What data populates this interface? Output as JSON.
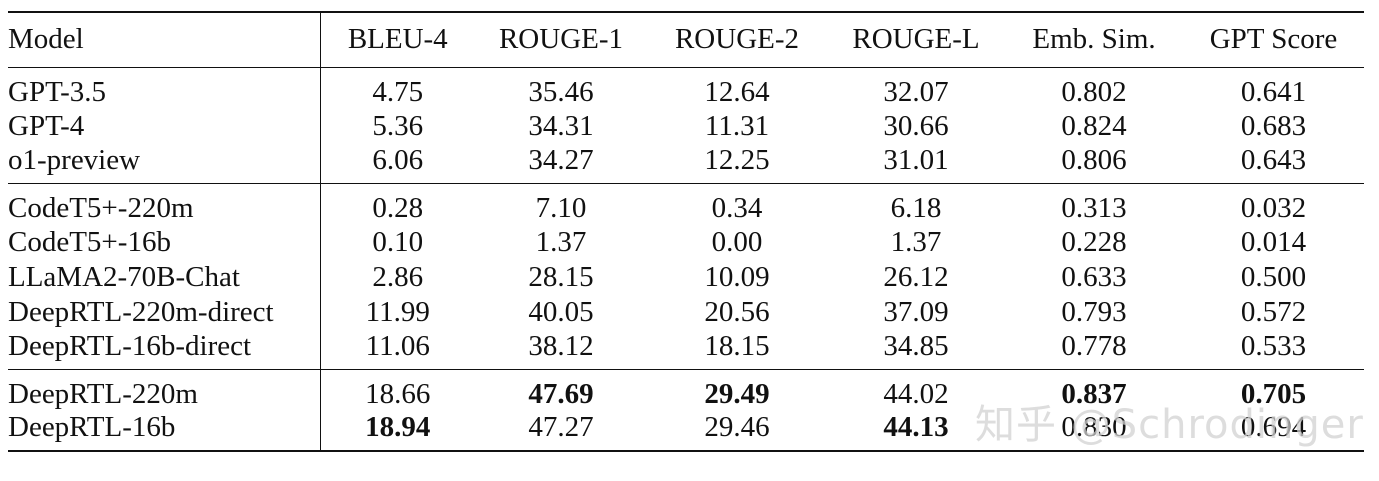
{
  "table": {
    "headers": [
      "Model",
      "BLEU-4",
      "ROUGE-1",
      "ROUGE-2",
      "ROUGE-L",
      "Emb. Sim.",
      "GPT Score"
    ],
    "groups": [
      {
        "rows": [
          {
            "model": "GPT-3.5",
            "values": [
              "4.75",
              "35.46",
              "12.64",
              "32.07",
              "0.802",
              "0.641"
            ],
            "bold": [
              false,
              false,
              false,
              false,
              false,
              false
            ]
          },
          {
            "model": "GPT-4",
            "values": [
              "5.36",
              "34.31",
              "11.31",
              "30.66",
              "0.824",
              "0.683"
            ],
            "bold": [
              false,
              false,
              false,
              false,
              false,
              false
            ]
          },
          {
            "model": "o1-preview",
            "values": [
              "6.06",
              "34.27",
              "12.25",
              "31.01",
              "0.806",
              "0.643"
            ],
            "bold": [
              false,
              false,
              false,
              false,
              false,
              false
            ]
          }
        ]
      },
      {
        "rows": [
          {
            "model": "CodeT5+-220m",
            "values": [
              "0.28",
              "7.10",
              "0.34",
              "6.18",
              "0.313",
              "0.032"
            ],
            "bold": [
              false,
              false,
              false,
              false,
              false,
              false
            ]
          },
          {
            "model": "CodeT5+-16b",
            "values": [
              "0.10",
              "1.37",
              "0.00",
              "1.37",
              "0.228",
              "0.014"
            ],
            "bold": [
              false,
              false,
              false,
              false,
              false,
              false
            ]
          },
          {
            "model": "LLaMA2-70B-Chat",
            "values": [
              "2.86",
              "28.15",
              "10.09",
              "26.12",
              "0.633",
              "0.500"
            ],
            "bold": [
              false,
              false,
              false,
              false,
              false,
              false
            ]
          },
          {
            "model": "DeepRTL-220m-direct",
            "values": [
              "11.99",
              "40.05",
              "20.56",
              "37.09",
              "0.793",
              "0.572"
            ],
            "bold": [
              false,
              false,
              false,
              false,
              false,
              false
            ]
          },
          {
            "model": "DeepRTL-16b-direct",
            "values": [
              "11.06",
              "38.12",
              "18.15",
              "34.85",
              "0.778",
              "0.533"
            ],
            "bold": [
              false,
              false,
              false,
              false,
              false,
              false
            ]
          }
        ]
      },
      {
        "rows": [
          {
            "model": "DeepRTL-220m",
            "values": [
              "18.66",
              "47.69",
              "29.49",
              "44.02",
              "0.837",
              "0.705"
            ],
            "bold": [
              false,
              true,
              true,
              false,
              true,
              true
            ]
          },
          {
            "model": "DeepRTL-16b",
            "values": [
              "18.94",
              "47.27",
              "29.46",
              "44.13",
              "0.830",
              "0.694"
            ],
            "bold": [
              true,
              false,
              false,
              true,
              false,
              false
            ]
          }
        ]
      }
    ]
  },
  "watermark": {
    "text": "知乎 @Schrodinger"
  }
}
